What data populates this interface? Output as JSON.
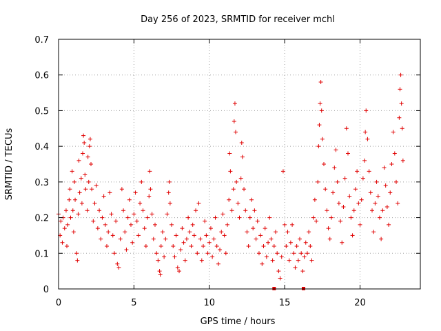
{
  "chart_data": {
    "type": "scatter",
    "title": "Day 256 of 2023, SRMTID for receiver mchl",
    "xlabel": "GPS time / hours",
    "ylabel": "SRMTID / TECUs",
    "xlim": [
      0,
      24
    ],
    "ylim": [
      0,
      0.7
    ],
    "xticks": [
      0,
      5,
      10,
      15,
      20
    ],
    "xtick_labels": [
      "0",
      "5",
      "10",
      "15",
      "20"
    ],
    "yticks": [
      0,
      0.1,
      0.2,
      0.3,
      0.4,
      0.5,
      0.6,
      0.7
    ],
    "ytick_labels": [
      "0",
      "0.1",
      "0.2",
      "0.3",
      "0.4",
      "0.5",
      "0.6",
      "0.7"
    ],
    "grid": true,
    "marker": "+",
    "color": "#e00000",
    "series": [
      {
        "name": "SRMTID",
        "points": [
          [
            0.0,
            0.21
          ],
          [
            0.1,
            0.15
          ],
          [
            0.15,
            0.19
          ],
          [
            0.25,
            0.13
          ],
          [
            0.3,
            0.2
          ],
          [
            0.4,
            0.17
          ],
          [
            0.5,
            0.22
          ],
          [
            0.55,
            0.12
          ],
          [
            0.6,
            0.18
          ],
          [
            0.7,
            0.25
          ],
          [
            0.75,
            0.28
          ],
          [
            0.8,
            0.2
          ],
          [
            0.9,
            0.33
          ],
          [
            0.95,
            0.22
          ],
          [
            1.0,
            0.16
          ],
          [
            1.05,
            0.3
          ],
          [
            1.1,
            0.25
          ],
          [
            1.2,
            0.1
          ],
          [
            1.25,
            0.08
          ],
          [
            1.3,
            0.21
          ],
          [
            1.35,
            0.36
          ],
          [
            1.4,
            0.27
          ],
          [
            1.5,
            0.31
          ],
          [
            1.55,
            0.24
          ],
          [
            1.6,
            0.38
          ],
          [
            1.65,
            0.43
          ],
          [
            1.7,
            0.41
          ],
          [
            1.75,
            0.32
          ],
          [
            1.8,
            0.28
          ],
          [
            1.9,
            0.22
          ],
          [
            1.95,
            0.37
          ],
          [
            2.0,
            0.3
          ],
          [
            2.05,
            0.4
          ],
          [
            2.1,
            0.42
          ],
          [
            2.15,
            0.35
          ],
          [
            2.2,
            0.28
          ],
          [
            2.3,
            0.19
          ],
          [
            2.4,
            0.24
          ],
          [
            2.5,
            0.29
          ],
          [
            2.6,
            0.17
          ],
          [
            2.7,
            0.22
          ],
          [
            2.8,
            0.14
          ],
          [
            2.9,
            0.2
          ],
          [
            3.0,
            0.26
          ],
          [
            3.1,
            0.18
          ],
          [
            3.2,
            0.12
          ],
          [
            3.3,
            0.16
          ],
          [
            3.4,
            0.27
          ],
          [
            3.5,
            0.21
          ],
          [
            3.6,
            0.15
          ],
          [
            3.7,
            0.1
          ],
          [
            3.8,
            0.19
          ],
          [
            3.9,
            0.07
          ],
          [
            4.0,
            0.06
          ],
          [
            4.1,
            0.14
          ],
          [
            4.2,
            0.28
          ],
          [
            4.3,
            0.22
          ],
          [
            4.4,
            0.16
          ],
          [
            4.5,
            0.11
          ],
          [
            4.6,
            0.2
          ],
          [
            4.7,
            0.25
          ],
          [
            4.8,
            0.18
          ],
          [
            4.9,
            0.13
          ],
          [
            5.0,
            0.21
          ],
          [
            5.1,
            0.27
          ],
          [
            5.2,
            0.19
          ],
          [
            5.3,
            0.15
          ],
          [
            5.4,
            0.24
          ],
          [
            5.5,
            0.3
          ],
          [
            5.6,
            0.22
          ],
          [
            5.7,
            0.17
          ],
          [
            5.8,
            0.12
          ],
          [
            5.9,
            0.2
          ],
          [
            6.0,
            0.26
          ],
          [
            6.05,
            0.33
          ],
          [
            6.1,
            0.28
          ],
          [
            6.2,
            0.21
          ],
          [
            6.3,
            0.14
          ],
          [
            6.4,
            0.18
          ],
          [
            6.5,
            0.1
          ],
          [
            6.6,
            0.08
          ],
          [
            6.7,
            0.05
          ],
          [
            6.75,
            0.04
          ],
          [
            6.8,
            0.12
          ],
          [
            6.9,
            0.16
          ],
          [
            7.0,
            0.09
          ],
          [
            7.1,
            0.14
          ],
          [
            7.2,
            0.21
          ],
          [
            7.3,
            0.27
          ],
          [
            7.35,
            0.3
          ],
          [
            7.4,
            0.24
          ],
          [
            7.5,
            0.18
          ],
          [
            7.6,
            0.12
          ],
          [
            7.7,
            0.09
          ],
          [
            7.8,
            0.15
          ],
          [
            7.9,
            0.06
          ],
          [
            8.0,
            0.05
          ],
          [
            8.1,
            0.11
          ],
          [
            8.2,
            0.17
          ],
          [
            8.3,
            0.13
          ],
          [
            8.4,
            0.08
          ],
          [
            8.5,
            0.14
          ],
          [
            8.6,
            0.2
          ],
          [
            8.7,
            0.16
          ],
          [
            8.8,
            0.12
          ],
          [
            8.9,
            0.18
          ],
          [
            9.0,
            0.15
          ],
          [
            9.1,
            0.22
          ],
          [
            9.2,
            0.1
          ],
          [
            9.3,
            0.24
          ],
          [
            9.4,
            0.14
          ],
          [
            9.5,
            0.08
          ],
          [
            9.6,
            0.12
          ],
          [
            9.7,
            0.19
          ],
          [
            9.8,
            0.15
          ],
          [
            9.9,
            0.1
          ],
          [
            10.0,
            0.13
          ],
          [
            10.1,
            0.17
          ],
          [
            10.2,
            0.09
          ],
          [
            10.3,
            0.14
          ],
          [
            10.4,
            0.2
          ],
          [
            10.5,
            0.12
          ],
          [
            10.6,
            0.07
          ],
          [
            10.7,
            0.11
          ],
          [
            10.8,
            0.16
          ],
          [
            10.9,
            0.21
          ],
          [
            11.0,
            0.15
          ],
          [
            11.1,
            0.1
          ],
          [
            11.2,
            0.18
          ],
          [
            11.3,
            0.25
          ],
          [
            11.35,
            0.38
          ],
          [
            11.4,
            0.33
          ],
          [
            11.5,
            0.22
          ],
          [
            11.6,
            0.28
          ],
          [
            11.65,
            0.47
          ],
          [
            11.7,
            0.52
          ],
          [
            11.75,
            0.44
          ],
          [
            11.8,
            0.3
          ],
          [
            11.9,
            0.24
          ],
          [
            12.0,
            0.2
          ],
          [
            12.1,
            0.31
          ],
          [
            12.15,
            0.41
          ],
          [
            12.2,
            0.37
          ],
          [
            12.3,
            0.28
          ],
          [
            12.4,
            0.22
          ],
          [
            12.5,
            0.16
          ],
          [
            12.6,
            0.12
          ],
          [
            12.7,
            0.2
          ],
          [
            12.8,
            0.25
          ],
          [
            12.9,
            0.17
          ],
          [
            13.0,
            0.22
          ],
          [
            13.1,
            0.14
          ],
          [
            13.2,
            0.19
          ],
          [
            13.3,
            0.1
          ],
          [
            13.4,
            0.15
          ],
          [
            13.5,
            0.07
          ],
          [
            13.6,
            0.12
          ],
          [
            13.7,
            0.17
          ],
          [
            13.8,
            0.09
          ],
          [
            13.9,
            0.13
          ],
          [
            14.0,
            0.2
          ],
          [
            14.1,
            0.14
          ],
          [
            14.2,
            0.08
          ],
          [
            14.3,
            0.12
          ],
          [
            14.4,
            0.16
          ],
          [
            14.5,
            0.1
          ],
          [
            14.6,
            0.05
          ],
          [
            14.7,
            0.03
          ],
          [
            14.8,
            0.09
          ],
          [
            14.9,
            0.33
          ],
          [
            15.0,
            0.18
          ],
          [
            15.1,
            0.12
          ],
          [
            15.2,
            0.16
          ],
          [
            15.3,
            0.08
          ],
          [
            15.4,
            0.13
          ],
          [
            15.5,
            0.18
          ],
          [
            15.6,
            0.1
          ],
          [
            15.7,
            0.06
          ],
          [
            15.8,
            0.12
          ],
          [
            15.9,
            0.08
          ],
          [
            16.0,
            0.14
          ],
          [
            16.1,
            0.1
          ],
          [
            16.2,
            0.05
          ],
          [
            16.3,
            0.09
          ],
          [
            16.4,
            0.13
          ],
          [
            16.5,
            0.1
          ],
          [
            16.6,
            0.16
          ],
          [
            16.7,
            0.12
          ],
          [
            16.8,
            0.08
          ],
          [
            16.9,
            0.2
          ],
          [
            17.0,
            0.25
          ],
          [
            17.1,
            0.19
          ],
          [
            17.2,
            0.3
          ],
          [
            17.25,
            0.4
          ],
          [
            17.3,
            0.46
          ],
          [
            17.35,
            0.52
          ],
          [
            17.4,
            0.58
          ],
          [
            17.45,
            0.5
          ],
          [
            17.5,
            0.42
          ],
          [
            17.6,
            0.35
          ],
          [
            17.7,
            0.28
          ],
          [
            17.8,
            0.22
          ],
          [
            17.9,
            0.17
          ],
          [
            18.0,
            0.14
          ],
          [
            18.1,
            0.2
          ],
          [
            18.2,
            0.27
          ],
          [
            18.3,
            0.34
          ],
          [
            18.4,
            0.39
          ],
          [
            18.5,
            0.3
          ],
          [
            18.6,
            0.24
          ],
          [
            18.7,
            0.19
          ],
          [
            18.8,
            0.13
          ],
          [
            18.9,
            0.23
          ],
          [
            19.0,
            0.31
          ],
          [
            19.1,
            0.45
          ],
          [
            19.2,
            0.38
          ],
          [
            19.3,
            0.26
          ],
          [
            19.4,
            0.2
          ],
          [
            19.5,
            0.15
          ],
          [
            19.6,
            0.22
          ],
          [
            19.7,
            0.28
          ],
          [
            19.8,
            0.33
          ],
          [
            19.9,
            0.24
          ],
          [
            20.0,
            0.18
          ],
          [
            20.1,
            0.25
          ],
          [
            20.2,
            0.31
          ],
          [
            20.3,
            0.36
          ],
          [
            20.35,
            0.44
          ],
          [
            20.4,
            0.5
          ],
          [
            20.5,
            0.42
          ],
          [
            20.6,
            0.33
          ],
          [
            20.7,
            0.27
          ],
          [
            20.8,
            0.22
          ],
          [
            20.9,
            0.16
          ],
          [
            21.0,
            0.24
          ],
          [
            21.1,
            0.3
          ],
          [
            21.2,
            0.26
          ],
          [
            21.3,
            0.2
          ],
          [
            21.4,
            0.14
          ],
          [
            21.5,
            0.22
          ],
          [
            21.6,
            0.34
          ],
          [
            21.7,
            0.29
          ],
          [
            21.8,
            0.23
          ],
          [
            21.9,
            0.18
          ],
          [
            22.0,
            0.27
          ],
          [
            22.1,
            0.35
          ],
          [
            22.2,
            0.44
          ],
          [
            22.3,
            0.38
          ],
          [
            22.4,
            0.3
          ],
          [
            22.5,
            0.24
          ],
          [
            22.6,
            0.48
          ],
          [
            22.65,
            0.56
          ],
          [
            22.7,
            0.6
          ],
          [
            22.75,
            0.52
          ],
          [
            22.8,
            0.45
          ],
          [
            22.85,
            0.36
          ]
        ]
      }
    ],
    "axis_marks": [
      14.3,
      16.25
    ]
  }
}
